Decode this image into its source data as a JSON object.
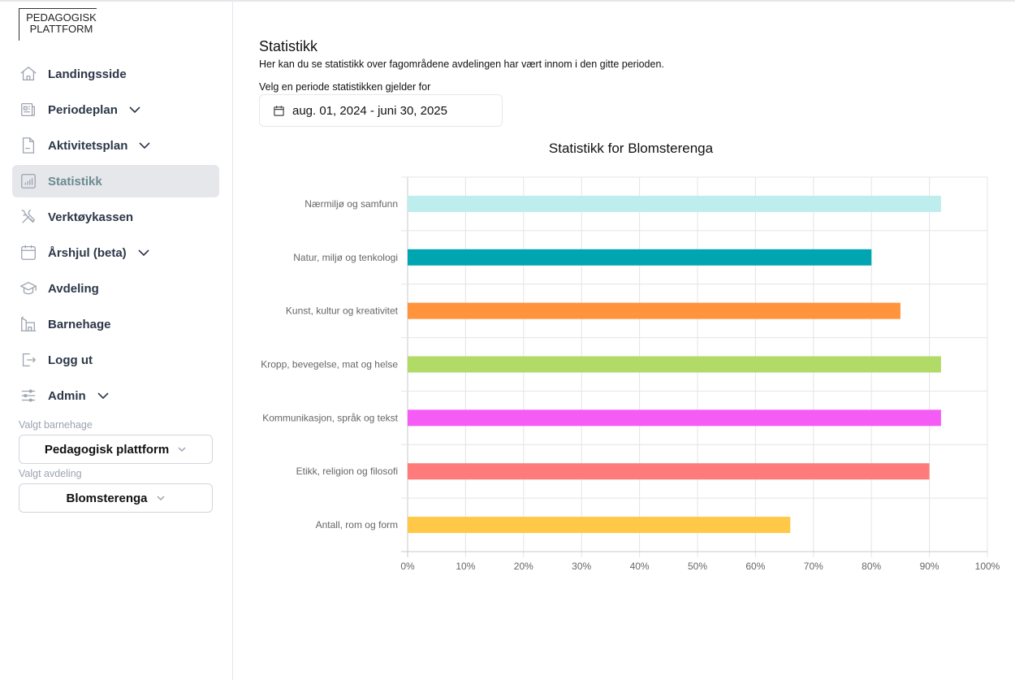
{
  "logo": {
    "line1": "PEDAGOGISK",
    "line2": "PLATTFORM"
  },
  "nav": [
    {
      "label": "Landingsside",
      "icon": "home-icon",
      "chevron": false
    },
    {
      "label": "Periodeplan",
      "icon": "newspaper-icon",
      "chevron": true
    },
    {
      "label": "Aktivitetsplan",
      "icon": "document-icon",
      "chevron": true
    },
    {
      "label": "Statistikk",
      "icon": "bar-chart-icon",
      "chevron": false,
      "active": true
    },
    {
      "label": "Verktøykassen",
      "icon": "tools-icon",
      "chevron": false
    },
    {
      "label": "Årshjul (beta)",
      "icon": "calendar-icon",
      "chevron": true
    },
    {
      "label": "Avdeling",
      "icon": "graduation-cap-icon",
      "chevron": false
    },
    {
      "label": "Barnehage",
      "icon": "building-icon",
      "chevron": false
    },
    {
      "label": "Logg ut",
      "icon": "logout-icon",
      "chevron": false
    },
    {
      "label": "Admin",
      "icon": "sliders-icon",
      "chevron": true
    }
  ],
  "selectors": {
    "kindergarten_label": "Valgt barnehage",
    "kindergarten_value": "Pedagogisk plattform",
    "department_label": "Valgt avdeling",
    "department_value": "Blomsterenga"
  },
  "main": {
    "title": "Statistikk",
    "description": "Her kan du se statistikk over fagområdene avdelingen har vært innom i den gitte perioden.",
    "period_label": "Velg en periode statistikken gjelder for",
    "period_value": "aug. 01, 2024 - juni 30, 2025"
  },
  "chart_data": {
    "type": "bar",
    "orientation": "horizontal",
    "title": "Statistikk for Blomsterenga",
    "categories": [
      "Nærmiljø og samfunn",
      "Natur, miljø og tenkologi",
      "Kunst, kultur og kreativitet",
      "Kropp, bevegelse, mat og helse",
      "Kommunikasjon, språk og tekst",
      "Etikk, religion og filosofi",
      "Antall, rom og form"
    ],
    "values": [
      92,
      80,
      85,
      92,
      92,
      90,
      66
    ],
    "colors": [
      "#bdeded",
      "#00a5b2",
      "#ff943d",
      "#b1da66",
      "#f45cf5",
      "#ff7b7b",
      "#ffc947"
    ],
    "xlim": [
      0,
      100
    ],
    "xticks": [
      "0%",
      "10%",
      "20%",
      "30%",
      "40%",
      "50%",
      "60%",
      "70%",
      "80%",
      "90%",
      "100%"
    ],
    "grid": true,
    "legend": "none"
  }
}
